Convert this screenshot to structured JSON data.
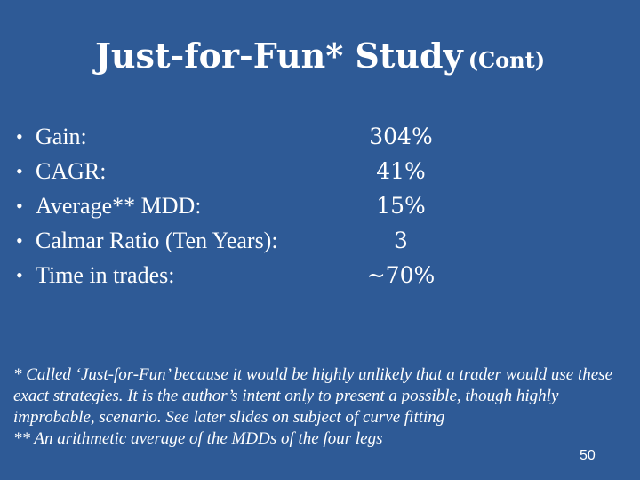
{
  "slide": {
    "title": "Just-for-Fun* Study",
    "title_suffix": "(Cont)",
    "stats": [
      {
        "bullet": "•",
        "label": "Gain:",
        "value": "304%"
      },
      {
        "bullet": "•",
        "label": "CAGR:",
        "value": "41%"
      },
      {
        "bullet": "•",
        "label": "Average** MDD:",
        "value": "15%"
      },
      {
        "bullet": "•",
        "label": "Calmar Ratio (Ten Years):",
        "value": "3"
      },
      {
        "bullet": "•",
        "label": "Time in trades:",
        "value": "~70%"
      }
    ],
    "footnote_1": "* Called ‘Just-for-Fun’ because it would be highly unlikely that a trader would use these exact strategies.   It is the author’s intent only to present a possible, though highly improbable, scenario. See later slides on subject of curve fitting",
    "footnote_2": "** An arithmetic average of the MDDs of the four legs",
    "page_number": "50",
    "background_color": "#2E5A96"
  }
}
